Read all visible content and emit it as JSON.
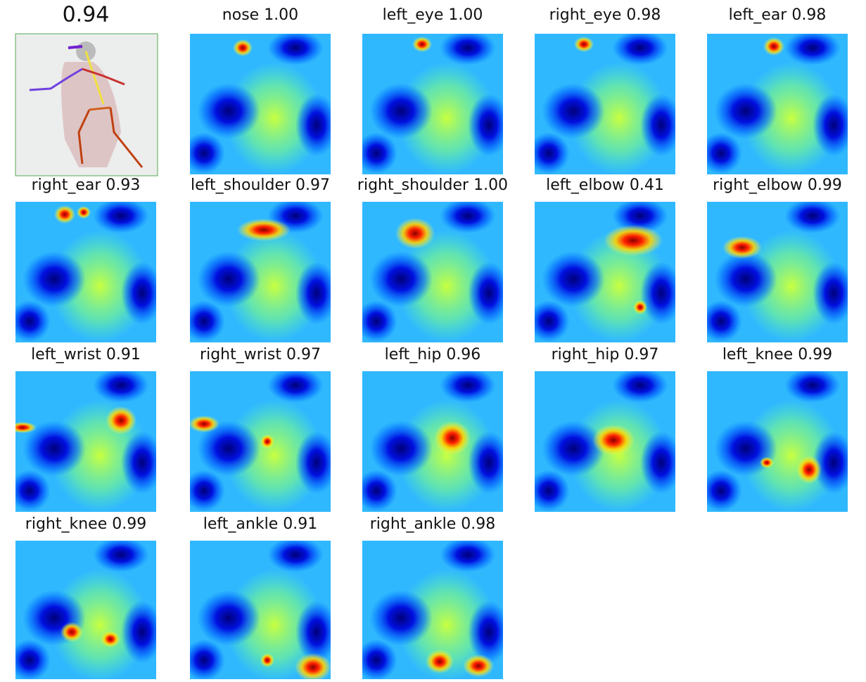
{
  "overall_score": "0.94",
  "panels": [
    {
      "title": "nose 1.00"
    },
    {
      "title": "left_eye 1.00"
    },
    {
      "title": "right_eye 0.98"
    },
    {
      "title": "left_ear 0.98"
    },
    {
      "title": "right_ear 0.93"
    },
    {
      "title": "left_shoulder 0.97"
    },
    {
      "title": "right_shoulder 1.00"
    },
    {
      "title": "left_elbow 0.41"
    },
    {
      "title": "right_elbow 0.99"
    },
    {
      "title": "left_wrist 0.91"
    },
    {
      "title": "right_wrist 0.97"
    },
    {
      "title": "left_hip 0.96"
    },
    {
      "title": "right_hip 0.97"
    },
    {
      "title": "left_knee 0.99"
    },
    {
      "title": "right_knee 0.99"
    },
    {
      "title": "left_ankle 0.91"
    },
    {
      "title": "right_ankle 0.98"
    }
  ]
}
